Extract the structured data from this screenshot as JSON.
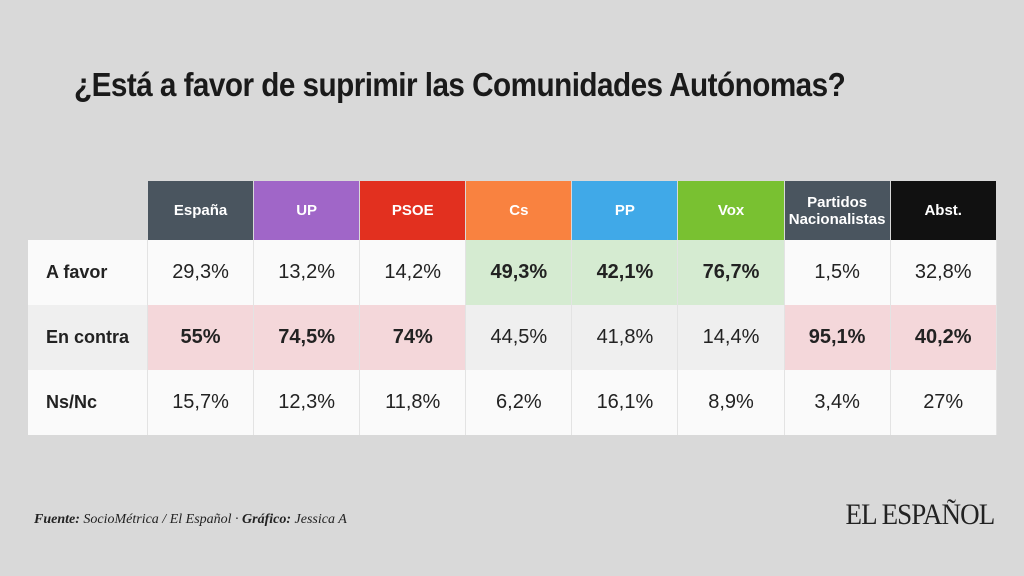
{
  "header": {
    "title": "¿Está a favor de suprimir las Comunidades Autónomas?"
  },
  "table": {
    "columns": [
      {
        "name": "España",
        "color": "#4a555f"
      },
      {
        "name": "UP",
        "color": "#a066c8"
      },
      {
        "name": "PSOE",
        "color": "#e2301f"
      },
      {
        "name": "Cs",
        "color": "#f98240"
      },
      {
        "name": "PP",
        "color": "#40a9e8"
      },
      {
        "name": "Vox",
        "color": "#79c131"
      },
      {
        "name": "Partidos Nacionalistas",
        "color": "#4a555f"
      },
      {
        "name": "Abst.",
        "color": "#111111"
      }
    ],
    "rows": [
      {
        "label": "A favor",
        "background": "#fafafa",
        "highlight_color": "#d5ebd1",
        "cells": [
          "29,3%",
          "13,2%",
          "14,2%",
          "49,3%",
          "42,1%",
          "76,7%",
          "1,5%",
          "32,8%"
        ],
        "highlighted": [
          false,
          false,
          false,
          true,
          true,
          true,
          false,
          false
        ]
      },
      {
        "label": "En contra",
        "background": "#efefef",
        "highlight_color": "#f4d7da",
        "cells": [
          "55%",
          "74,5%",
          "74%",
          "44,5%",
          "41,8%",
          "14,4%",
          "95,1%",
          "40,2%"
        ],
        "highlighted": [
          true,
          true,
          true,
          false,
          false,
          false,
          true,
          true
        ]
      },
      {
        "label": "Ns/Nc",
        "background": "#fafafa",
        "cells": [
          "15,7%",
          "12,3%",
          "11,8%",
          "6,2%",
          "16,1%",
          "8,9%",
          "3,4%",
          "27%"
        ],
        "highlighted": [
          false,
          false,
          false,
          false,
          false,
          false,
          false,
          false
        ]
      }
    ]
  },
  "footer": {
    "source_label": "Fuente:",
    "source": " SocioMétrica / El Español · ",
    "credit_label": "Gráfico:",
    "credit": " Jessica A",
    "logo": "EL ESPAÑOL"
  }
}
